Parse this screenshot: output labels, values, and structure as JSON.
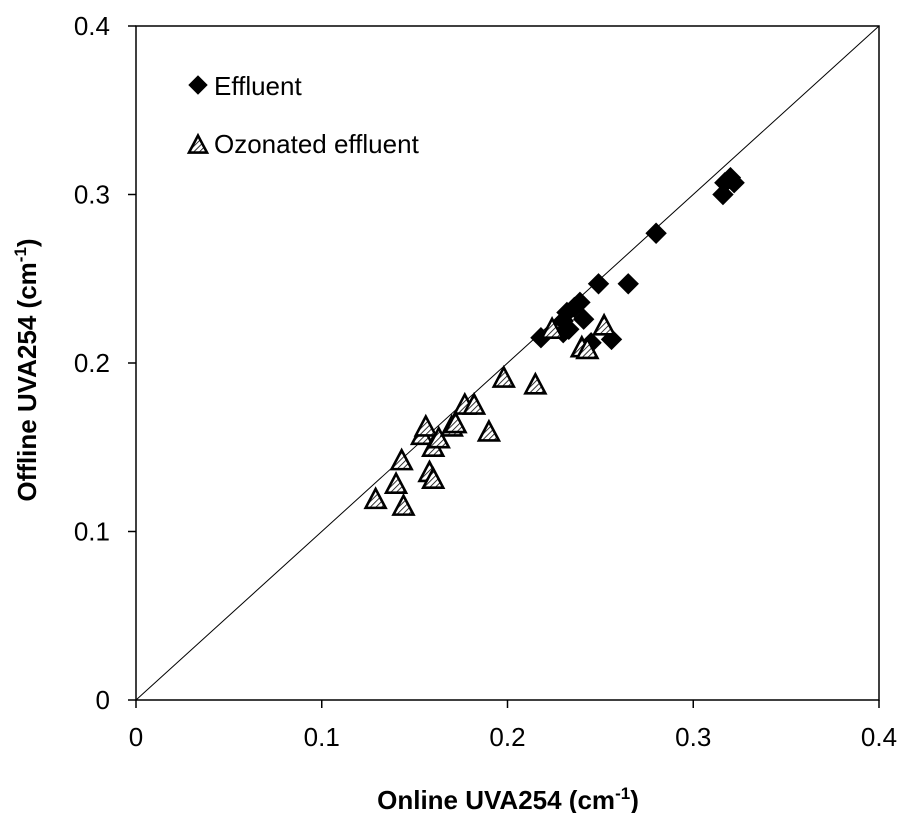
{
  "chart_data": {
    "type": "scatter",
    "title": "",
    "xlabel": "Online UVA254 (cm",
    "xlabel_sup": "-1",
    "xlabel_close": ")",
    "ylabel": "Offline UVA254 (cm",
    "ylabel_sup": "-1",
    "ylabel_close": ")",
    "xlim": [
      0,
      0.4
    ],
    "ylim": [
      0,
      0.4
    ],
    "x_ticks": [
      0,
      0.1,
      0.2,
      0.3,
      0.4
    ],
    "y_ticks": [
      0,
      0.1,
      0.2,
      0.3,
      0.4
    ],
    "x_tick_labels": [
      "0",
      "0.1",
      "0.2",
      "0.3",
      "0.4"
    ],
    "y_tick_labels": [
      "0",
      "0.1",
      "0.2",
      "0.3",
      "0.4"
    ],
    "grid": false,
    "legend_position": "top-left",
    "reference_line": {
      "type": "1:1",
      "from": [
        0,
        0
      ],
      "to": [
        0.4,
        0.4
      ]
    },
    "series": [
      {
        "name": "Effluent",
        "marker": "filled-diamond",
        "color": "#000000",
        "points": [
          [
            0.218,
            0.215
          ],
          [
            0.23,
            0.218
          ],
          [
            0.233,
            0.22
          ],
          [
            0.23,
            0.225
          ],
          [
            0.232,
            0.23
          ],
          [
            0.236,
            0.233
          ],
          [
            0.239,
            0.236
          ],
          [
            0.241,
            0.226
          ],
          [
            0.245,
            0.212
          ],
          [
            0.249,
            0.247
          ],
          [
            0.256,
            0.214
          ],
          [
            0.265,
            0.247
          ],
          [
            0.28,
            0.277
          ],
          [
            0.316,
            0.3
          ],
          [
            0.317,
            0.307
          ],
          [
            0.32,
            0.31
          ],
          [
            0.322,
            0.307
          ]
        ]
      },
      {
        "name": "Ozonated effluent",
        "marker": "hatched-triangle",
        "color": "#000000",
        "points": [
          [
            0.129,
            0.119
          ],
          [
            0.14,
            0.128
          ],
          [
            0.143,
            0.142
          ],
          [
            0.144,
            0.115
          ],
          [
            0.154,
            0.157
          ],
          [
            0.156,
            0.162
          ],
          [
            0.158,
            0.135
          ],
          [
            0.16,
            0.131
          ],
          [
            0.16,
            0.15
          ],
          [
            0.163,
            0.155
          ],
          [
            0.17,
            0.162
          ],
          [
            0.172,
            0.164
          ],
          [
            0.177,
            0.175
          ],
          [
            0.182,
            0.175
          ],
          [
            0.19,
            0.159
          ],
          [
            0.198,
            0.191
          ],
          [
            0.215,
            0.187
          ],
          [
            0.224,
            0.22
          ],
          [
            0.24,
            0.209
          ],
          [
            0.243,
            0.208
          ],
          [
            0.252,
            0.222
          ]
        ]
      }
    ]
  }
}
